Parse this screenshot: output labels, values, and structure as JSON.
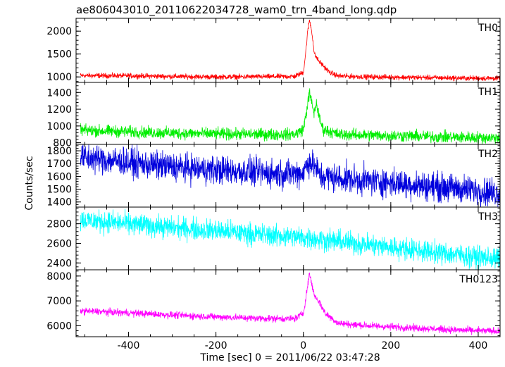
{
  "title": "ae806043010_20110622034728_wam0_trn_4band_long.qdp",
  "ylabel": "Counts/sec",
  "xlabel": "Time [sec] 0 = 2011/06/22 03:47:28",
  "chart_data": [
    {
      "type": "line",
      "name": "TH0",
      "color": "#ff0000",
      "xlim": [
        -520,
        450
      ],
      "ylim": [
        880,
        2280
      ],
      "yticks": [
        1000,
        1500,
        2000
      ],
      "yticklabels": [
        "1000",
        "1500",
        "2000"
      ],
      "noise": 28,
      "points": [
        [
          -510,
          1030
        ],
        [
          -400,
          1025
        ],
        [
          -300,
          1010
        ],
        [
          -200,
          1000
        ],
        [
          -100,
          1005
        ],
        [
          -20,
          1010
        ],
        [
          0,
          1100
        ],
        [
          5,
          1500
        ],
        [
          10,
          2000
        ],
        [
          14,
          2250
        ],
        [
          20,
          1950
        ],
        [
          25,
          1500
        ],
        [
          35,
          1350
        ],
        [
          45,
          1250
        ],
        [
          60,
          1100
        ],
        [
          80,
          1020
        ],
        [
          150,
          1000
        ],
        [
          250,
          990
        ],
        [
          350,
          975
        ],
        [
          450,
          970
        ]
      ]
    },
    {
      "type": "line",
      "name": "TH1",
      "color": "#00ee00",
      "xlim": [
        -520,
        450
      ],
      "ylim": [
        780,
        1520
      ],
      "yticks": [
        800,
        1000,
        1200,
        1400
      ],
      "yticklabels": [
        "800",
        "1000",
        "1200",
        "1400"
      ],
      "noise": 35,
      "points": [
        [
          -510,
          950
        ],
        [
          -400,
          930
        ],
        [
          -300,
          915
        ],
        [
          -200,
          905
        ],
        [
          -100,
          900
        ],
        [
          -20,
          900
        ],
        [
          0,
          960
        ],
        [
          8,
          1200
        ],
        [
          14,
          1400
        ],
        [
          20,
          1250
        ],
        [
          25,
          1150
        ],
        [
          30,
          1280
        ],
        [
          36,
          1100
        ],
        [
          45,
          960
        ],
        [
          80,
          900
        ],
        [
          150,
          890
        ],
        [
          250,
          880
        ],
        [
          350,
          865
        ],
        [
          450,
          860
        ]
      ]
    },
    {
      "type": "line",
      "name": "TH2",
      "color": "#0000dd",
      "xlim": [
        -520,
        450
      ],
      "ylim": [
        1360,
        1850
      ],
      "yticks": [
        1400,
        1500,
        1600,
        1700,
        1800
      ],
      "yticklabels": [
        "1400",
        "1500",
        "1600",
        "1700",
        "1800"
      ],
      "noise": 55,
      "points": [
        [
          -510,
          1750
        ],
        [
          -450,
          1730
        ],
        [
          -350,
          1690
        ],
        [
          -250,
          1660
        ],
        [
          -150,
          1640
        ],
        [
          -50,
          1620
        ],
        [
          0,
          1630
        ],
        [
          12,
          1720
        ],
        [
          25,
          1680
        ],
        [
          40,
          1600
        ],
        [
          100,
          1580
        ],
        [
          200,
          1550
        ],
        [
          300,
          1520
        ],
        [
          400,
          1490
        ],
        [
          450,
          1470
        ]
      ]
    },
    {
      "type": "line",
      "name": "TH3",
      "color": "#00ffff",
      "xlim": [
        -520,
        450
      ],
      "ylim": [
        2330,
        2970
      ],
      "yticks": [
        2400,
        2600,
        2800
      ],
      "yticklabels": [
        "2400",
        "2600",
        "2800"
      ],
      "noise": 55,
      "points": [
        [
          -510,
          2840
        ],
        [
          -400,
          2800
        ],
        [
          -300,
          2760
        ],
        [
          -200,
          2730
        ],
        [
          -100,
          2690
        ],
        [
          0,
          2660
        ],
        [
          100,
          2610
        ],
        [
          200,
          2560
        ],
        [
          300,
          2510
        ],
        [
          400,
          2460
        ],
        [
          450,
          2440
        ]
      ]
    },
    {
      "type": "line",
      "name": "TH0123",
      "color": "#ff00ff",
      "xlim": [
        -520,
        450
      ],
      "ylim": [
        5560,
        8250
      ],
      "yticks": [
        6000,
        7000,
        8000
      ],
      "yticklabels": [
        "6000",
        "7000",
        "8000"
      ],
      "noise": 70,
      "points": [
        [
          -510,
          6600
        ],
        [
          -400,
          6520
        ],
        [
          -300,
          6430
        ],
        [
          -200,
          6360
        ],
        [
          -100,
          6300
        ],
        [
          -20,
          6280
        ],
        [
          0,
          6500
        ],
        [
          8,
          7400
        ],
        [
          14,
          8100
        ],
        [
          20,
          7600
        ],
        [
          26,
          7200
        ],
        [
          35,
          7000
        ],
        [
          50,
          6500
        ],
        [
          80,
          6100
        ],
        [
          150,
          6000
        ],
        [
          250,
          5920
        ],
        [
          350,
          5830
        ],
        [
          450,
          5780
        ]
      ]
    }
  ],
  "xaxis": {
    "ticks": [
      -400,
      -200,
      0,
      200,
      400
    ],
    "ticklabels": [
      "-400",
      "-200",
      "0",
      "200",
      "400"
    ]
  }
}
